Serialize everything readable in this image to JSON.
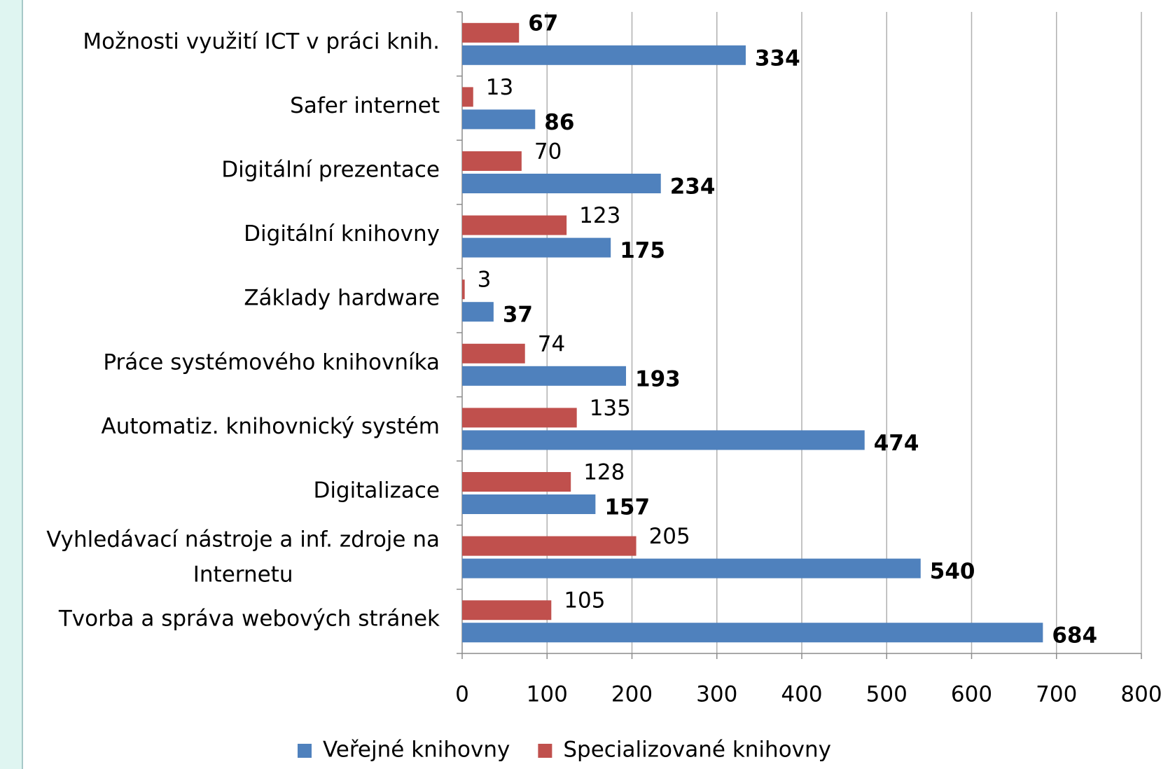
{
  "chart_data": {
    "type": "barh",
    "categories": [
      "Možnosti využití ICT v práci knih.",
      "Safer internet",
      "Digitální prezentace",
      "Digitální knihovny",
      "Základy hardware",
      "Práce systémového knihovníka",
      "Automatiz. knihovnický systém",
      "Digitalizace",
      "Vyhledávací nástroje a inf. zdroje na Internetu",
      "Tvorba a správa webových stránek"
    ],
    "series": [
      {
        "name": "Veřejné knihovny",
        "color": "#4f81bd",
        "values": [
          334,
          86,
          234,
          175,
          37,
          193,
          474,
          157,
          540,
          684
        ]
      },
      {
        "name": "Specializované knihovny",
        "color": "#c0504d",
        "values": [
          67,
          13,
          70,
          123,
          3,
          74,
          135,
          128,
          205,
          105
        ]
      }
    ],
    "xlim": [
      0,
      800
    ],
    "xticks": [
      0,
      100,
      200,
      300,
      400,
      500,
      600,
      700,
      800
    ],
    "grid": true,
    "legend": "bottom"
  }
}
